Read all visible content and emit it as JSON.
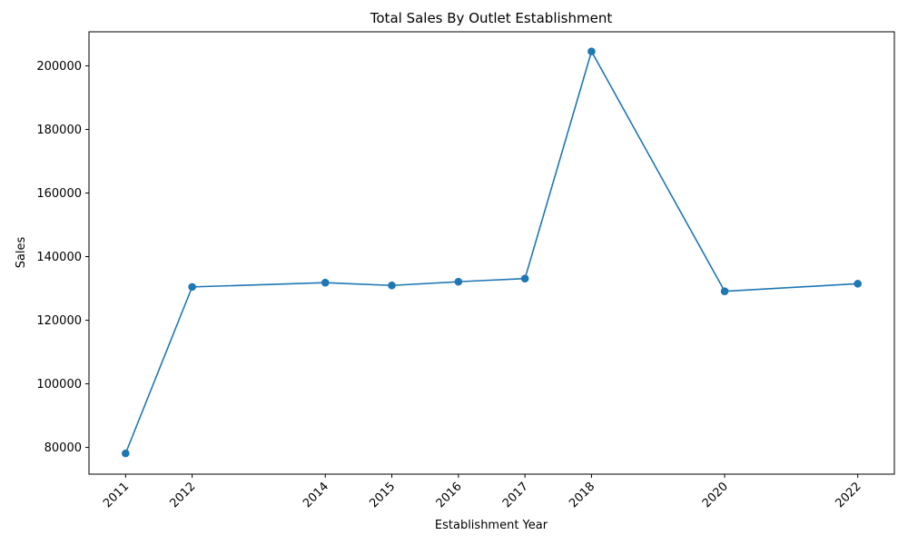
{
  "chart_data": {
    "type": "line",
    "title": "Total Sales By Outlet Establishment",
    "xlabel": "Establishment Year",
    "ylabel": "Sales",
    "x": [
      2011,
      2012,
      2014,
      2015,
      2016,
      2017,
      2018,
      2020,
      2022
    ],
    "x_ticks": [
      2011,
      2012,
      2014,
      2015,
      2016,
      2017,
      2018,
      2020,
      2022
    ],
    "y_ticks": [
      80000,
      100000,
      120000,
      140000,
      160000,
      180000,
      200000
    ],
    "xlim": [
      2010.45,
      2022.55
    ],
    "ylim": [
      71600,
      210700
    ],
    "series": [
      {
        "values": [
          78132,
          130476,
          131810,
          130943,
          132113,
          133104,
          204522,
          129104,
          131478
        ],
        "color": "#1f77b4",
        "marker": "circle"
      }
    ],
    "grid": false,
    "legend": "none"
  }
}
